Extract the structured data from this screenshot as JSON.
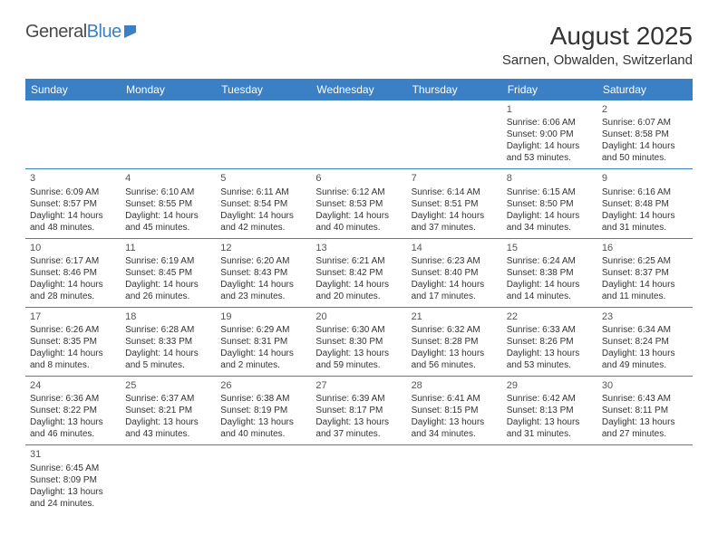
{
  "logo": {
    "text1": "General",
    "text2": "Blue"
  },
  "title": "August 2025",
  "location": "Sarnen, Obwalden, Switzerland",
  "colors": {
    "header_bg": "#3b7fc4",
    "header_text": "#ffffff",
    "body_text": "#333333",
    "border": "#3b7fc4",
    "logo_gray": "#4a4a4a",
    "logo_blue": "#3b7fc4"
  },
  "day_headers": [
    "Sunday",
    "Monday",
    "Tuesday",
    "Wednesday",
    "Thursday",
    "Friday",
    "Saturday"
  ],
  "weeks": [
    [
      null,
      null,
      null,
      null,
      null,
      {
        "n": "1",
        "sr": "Sunrise: 6:06 AM",
        "ss": "Sunset: 9:00 PM",
        "dl": "Daylight: 14 hours and 53 minutes."
      },
      {
        "n": "2",
        "sr": "Sunrise: 6:07 AM",
        "ss": "Sunset: 8:58 PM",
        "dl": "Daylight: 14 hours and 50 minutes."
      }
    ],
    [
      {
        "n": "3",
        "sr": "Sunrise: 6:09 AM",
        "ss": "Sunset: 8:57 PM",
        "dl": "Daylight: 14 hours and 48 minutes."
      },
      {
        "n": "4",
        "sr": "Sunrise: 6:10 AM",
        "ss": "Sunset: 8:55 PM",
        "dl": "Daylight: 14 hours and 45 minutes."
      },
      {
        "n": "5",
        "sr": "Sunrise: 6:11 AM",
        "ss": "Sunset: 8:54 PM",
        "dl": "Daylight: 14 hours and 42 minutes."
      },
      {
        "n": "6",
        "sr": "Sunrise: 6:12 AM",
        "ss": "Sunset: 8:53 PM",
        "dl": "Daylight: 14 hours and 40 minutes."
      },
      {
        "n": "7",
        "sr": "Sunrise: 6:14 AM",
        "ss": "Sunset: 8:51 PM",
        "dl": "Daylight: 14 hours and 37 minutes."
      },
      {
        "n": "8",
        "sr": "Sunrise: 6:15 AM",
        "ss": "Sunset: 8:50 PM",
        "dl": "Daylight: 14 hours and 34 minutes."
      },
      {
        "n": "9",
        "sr": "Sunrise: 6:16 AM",
        "ss": "Sunset: 8:48 PM",
        "dl": "Daylight: 14 hours and 31 minutes."
      }
    ],
    [
      {
        "n": "10",
        "sr": "Sunrise: 6:17 AM",
        "ss": "Sunset: 8:46 PM",
        "dl": "Daylight: 14 hours and 28 minutes."
      },
      {
        "n": "11",
        "sr": "Sunrise: 6:19 AM",
        "ss": "Sunset: 8:45 PM",
        "dl": "Daylight: 14 hours and 26 minutes."
      },
      {
        "n": "12",
        "sr": "Sunrise: 6:20 AM",
        "ss": "Sunset: 8:43 PM",
        "dl": "Daylight: 14 hours and 23 minutes."
      },
      {
        "n": "13",
        "sr": "Sunrise: 6:21 AM",
        "ss": "Sunset: 8:42 PM",
        "dl": "Daylight: 14 hours and 20 minutes."
      },
      {
        "n": "14",
        "sr": "Sunrise: 6:23 AM",
        "ss": "Sunset: 8:40 PM",
        "dl": "Daylight: 14 hours and 17 minutes."
      },
      {
        "n": "15",
        "sr": "Sunrise: 6:24 AM",
        "ss": "Sunset: 8:38 PM",
        "dl": "Daylight: 14 hours and 14 minutes."
      },
      {
        "n": "16",
        "sr": "Sunrise: 6:25 AM",
        "ss": "Sunset: 8:37 PM",
        "dl": "Daylight: 14 hours and 11 minutes."
      }
    ],
    [
      {
        "n": "17",
        "sr": "Sunrise: 6:26 AM",
        "ss": "Sunset: 8:35 PM",
        "dl": "Daylight: 14 hours and 8 minutes."
      },
      {
        "n": "18",
        "sr": "Sunrise: 6:28 AM",
        "ss": "Sunset: 8:33 PM",
        "dl": "Daylight: 14 hours and 5 minutes."
      },
      {
        "n": "19",
        "sr": "Sunrise: 6:29 AM",
        "ss": "Sunset: 8:31 PM",
        "dl": "Daylight: 14 hours and 2 minutes."
      },
      {
        "n": "20",
        "sr": "Sunrise: 6:30 AM",
        "ss": "Sunset: 8:30 PM",
        "dl": "Daylight: 13 hours and 59 minutes."
      },
      {
        "n": "21",
        "sr": "Sunrise: 6:32 AM",
        "ss": "Sunset: 8:28 PM",
        "dl": "Daylight: 13 hours and 56 minutes."
      },
      {
        "n": "22",
        "sr": "Sunrise: 6:33 AM",
        "ss": "Sunset: 8:26 PM",
        "dl": "Daylight: 13 hours and 53 minutes."
      },
      {
        "n": "23",
        "sr": "Sunrise: 6:34 AM",
        "ss": "Sunset: 8:24 PM",
        "dl": "Daylight: 13 hours and 49 minutes."
      }
    ],
    [
      {
        "n": "24",
        "sr": "Sunrise: 6:36 AM",
        "ss": "Sunset: 8:22 PM",
        "dl": "Daylight: 13 hours and 46 minutes."
      },
      {
        "n": "25",
        "sr": "Sunrise: 6:37 AM",
        "ss": "Sunset: 8:21 PM",
        "dl": "Daylight: 13 hours and 43 minutes."
      },
      {
        "n": "26",
        "sr": "Sunrise: 6:38 AM",
        "ss": "Sunset: 8:19 PM",
        "dl": "Daylight: 13 hours and 40 minutes."
      },
      {
        "n": "27",
        "sr": "Sunrise: 6:39 AM",
        "ss": "Sunset: 8:17 PM",
        "dl": "Daylight: 13 hours and 37 minutes."
      },
      {
        "n": "28",
        "sr": "Sunrise: 6:41 AM",
        "ss": "Sunset: 8:15 PM",
        "dl": "Daylight: 13 hours and 34 minutes."
      },
      {
        "n": "29",
        "sr": "Sunrise: 6:42 AM",
        "ss": "Sunset: 8:13 PM",
        "dl": "Daylight: 13 hours and 31 minutes."
      },
      {
        "n": "30",
        "sr": "Sunrise: 6:43 AM",
        "ss": "Sunset: 8:11 PM",
        "dl": "Daylight: 13 hours and 27 minutes."
      }
    ],
    [
      {
        "n": "31",
        "sr": "Sunrise: 6:45 AM",
        "ss": "Sunset: 8:09 PM",
        "dl": "Daylight: 13 hours and 24 minutes."
      },
      null,
      null,
      null,
      null,
      null,
      null
    ]
  ]
}
